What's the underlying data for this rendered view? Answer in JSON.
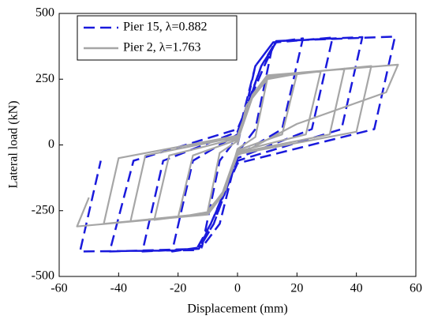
{
  "chart_data": {
    "type": "line",
    "xlabel": "Displacement (mm)",
    "ylabel": "Lateral load (kN)",
    "xlim": [
      -60,
      60
    ],
    "xticks": [
      -60,
      -40,
      -20,
      0,
      20,
      40,
      60
    ],
    "ylim": [
      -500,
      500
    ],
    "yticks": [
      -500,
      -250,
      0,
      250,
      500
    ],
    "legend": "upper left",
    "series": [
      {
        "name": "Pier 15, λ=0.882",
        "color": "#1a1adc",
        "dash": true,
        "x": [
          0,
          6,
          12,
          6,
          0,
          -6,
          -12,
          -6,
          0,
          6,
          12,
          22,
          15,
          0,
          -8,
          -13,
          -22,
          -15,
          0,
          8,
          13,
          32,
          25,
          0,
          -8,
          -13,
          -32,
          -25,
          0,
          8,
          13,
          42,
          35,
          0,
          -9,
          -13,
          -43,
          -35,
          0,
          9,
          13,
          53,
          46,
          0,
          -9,
          -14,
          -53,
          -46
        ],
        "values": [
          0,
          300,
          390,
          60,
          -30,
          -300,
          -390,
          -60,
          30,
          300,
          390,
          405,
          60,
          -40,
          -300,
          -390,
          -405,
          -60,
          40,
          300,
          390,
          408,
          60,
          -50,
          -300,
          -395,
          -405,
          -60,
          50,
          300,
          395,
          410,
          60,
          -60,
          -300,
          -395,
          -405,
          -60,
          60,
          300,
          395,
          412,
          60,
          -70,
          -300,
          -400,
          -405,
          -60
        ]
      },
      {
        "name": "Pier 2, λ=1.763",
        "color": "#a6a6a6",
        "dash": false,
        "x": [
          0,
          3,
          10,
          6,
          0,
          -4,
          -10,
          -6,
          0,
          5,
          10,
          20,
          15,
          0,
          -5,
          -10,
          -20,
          -15,
          0,
          5,
          10,
          28,
          23,
          0,
          -5,
          -10,
          -28,
          -23,
          0,
          5,
          10,
          36,
          31,
          0,
          -5,
          -10,
          -36,
          -31,
          0,
          5,
          10,
          45,
          40,
          0,
          -5,
          -10,
          -45,
          -40,
          0,
          5,
          10,
          54,
          50,
          20,
          0,
          -5,
          -10,
          -54,
          -50
        ],
        "values": [
          0,
          150,
          250,
          30,
          -15,
          -170,
          -250,
          -30,
          15,
          180,
          250,
          270,
          40,
          -20,
          -180,
          -255,
          -275,
          -40,
          20,
          180,
          255,
          280,
          40,
          -25,
          -185,
          -260,
          -285,
          -40,
          25,
          185,
          260,
          290,
          40,
          -30,
          -185,
          -260,
          -290,
          -40,
          30,
          185,
          262,
          300,
          50,
          -35,
          -185,
          -262,
          -300,
          -50,
          35,
          190,
          265,
          305,
          200,
          80,
          -40,
          -190,
          -265,
          -310,
          -200
        ]
      }
    ]
  }
}
